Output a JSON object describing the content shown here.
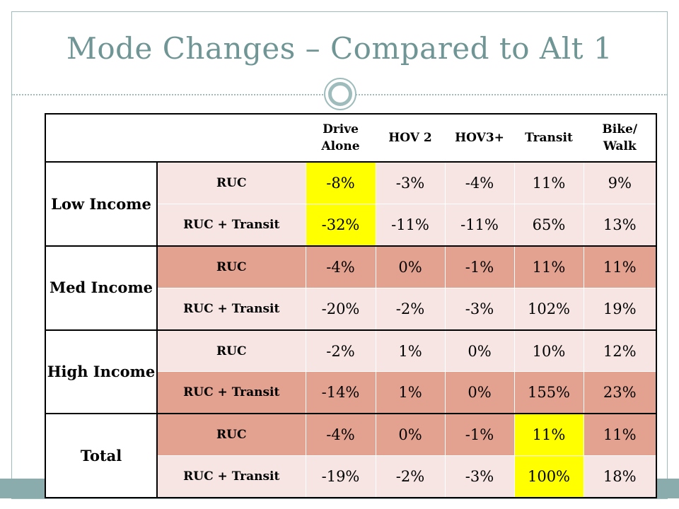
{
  "title": "Mode Changes – Compared to Alt 1",
  "columns": [
    "Drive Alone",
    "HOV 2",
    "HOV3+",
    "Transit",
    "Bike/ Walk"
  ],
  "groups": [
    {
      "name": "Low Income",
      "rows": [
        {
          "label": "RUC",
          "values": [
            "-8%",
            "-3%",
            "-4%",
            "11%",
            "9%"
          ]
        },
        {
          "label": "RUC + Transit",
          "values": [
            "-32%",
            "-11%",
            "-11%",
            "65%",
            "13%"
          ]
        }
      ]
    },
    {
      "name": "Med Income",
      "rows": [
        {
          "label": "RUC",
          "values": [
            "-4%",
            "0%",
            "-1%",
            "11%",
            "11%"
          ]
        },
        {
          "label": "RUC + Transit",
          "values": [
            "-20%",
            "-2%",
            "-3%",
            "102%",
            "19%"
          ]
        }
      ]
    },
    {
      "name": "High Income",
      "rows": [
        {
          "label": "RUC",
          "values": [
            "-2%",
            "1%",
            "0%",
            "10%",
            "12%"
          ]
        },
        {
          "label": "RUC + Transit",
          "values": [
            "-14%",
            "1%",
            "0%",
            "155%",
            "23%"
          ]
        }
      ]
    },
    {
      "name": "Total",
      "rows": [
        {
          "label": "RUC",
          "values": [
            "-4%",
            "0%",
            "-1%",
            "11%",
            "11%"
          ]
        },
        {
          "label": "RUC + Transit",
          "values": [
            "-19%",
            "-2%",
            "-3%",
            "100%",
            "18%"
          ]
        }
      ]
    }
  ],
  "colors": {
    "title": "#6f9595",
    "accent": "#9fbcbc",
    "row_light": "#f6e5e3",
    "row_dark": "#e3a190",
    "highlight": "#ffff00"
  }
}
